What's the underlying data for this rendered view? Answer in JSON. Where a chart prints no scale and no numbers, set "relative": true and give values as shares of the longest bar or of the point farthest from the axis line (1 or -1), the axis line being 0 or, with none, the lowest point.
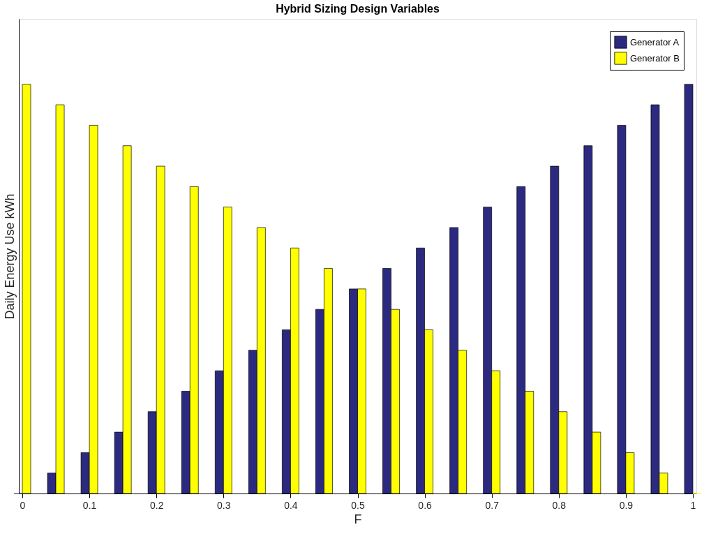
{
  "chart_data": {
    "type": "bar",
    "title": "Hybrid Sizing Design Variables",
    "xlabel": "F",
    "ylabel": "Daily Energy Use kWh",
    "categories": [
      "0",
      null,
      "0.1",
      null,
      "0.2",
      null,
      "0.3",
      null,
      "0.4",
      null,
      "0.5",
      null,
      "0.6",
      null,
      "0.7",
      null,
      "0.8",
      null,
      "0.9",
      null,
      "1"
    ],
    "series": [
      {
        "name": "Generator A",
        "color": "#2c2a80",
        "values": [
          0,
          0.05,
          0.1,
          0.15,
          0.2,
          0.25,
          0.3,
          0.35,
          0.4,
          0.45,
          0.5,
          0.55,
          0.6,
          0.65,
          0.7,
          0.75,
          0.8,
          0.85,
          0.9,
          0.95,
          1
        ]
      },
      {
        "name": "Generator B",
        "color": "#ffff00",
        "values": [
          1,
          0.95,
          0.9,
          0.85,
          0.8,
          0.75,
          0.7,
          0.65,
          0.6,
          0.55,
          0.5,
          0.45,
          0.4,
          0.35,
          0.3,
          0.25,
          0.2,
          0.15,
          0.1,
          0.05,
          0
        ]
      }
    ],
    "relative": true,
    "grid": false,
    "legend": "top right",
    "tick_labels": "x"
  }
}
